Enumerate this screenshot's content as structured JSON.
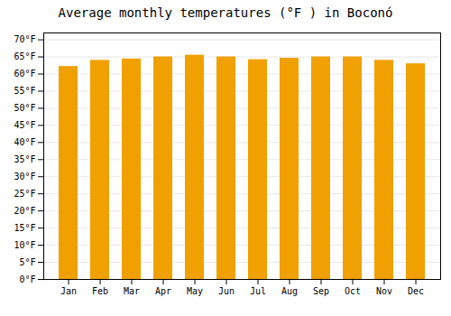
{
  "chart_data": {
    "type": "bar",
    "title": "Average monthly temperatures (°F ) in Boconó",
    "categories": [
      "Jan",
      "Feb",
      "Mar",
      "Apr",
      "May",
      "Jun",
      "Jul",
      "Aug",
      "Sep",
      "Oct",
      "Nov",
      "Dec"
    ],
    "values": [
      62.2,
      64.0,
      64.4,
      65.0,
      65.5,
      65.0,
      64.2,
      64.6,
      65.0,
      65.0,
      64.0,
      63.0
    ],
    "color": "#F0A000",
    "ylim": [
      0,
      72
    ],
    "yticks": [
      {
        "value": 0,
        "label": "0°F"
      },
      {
        "value": 5,
        "label": "5°F"
      },
      {
        "value": 10,
        "label": "10°F"
      },
      {
        "value": 15,
        "label": "15°F"
      },
      {
        "value": 20,
        "label": "20°F"
      },
      {
        "value": 25,
        "label": "25°F"
      },
      {
        "value": 30,
        "label": "30°F"
      },
      {
        "value": 35,
        "label": "35°F"
      },
      {
        "value": 40,
        "label": "40°F"
      },
      {
        "value": 45,
        "label": "45°F"
      },
      {
        "value": 50,
        "label": "50°F"
      },
      {
        "value": 55,
        "label": "55°F"
      },
      {
        "value": 60,
        "label": "60°F"
      },
      {
        "value": 65,
        "label": "65°F"
      },
      {
        "value": 70,
        "label": "70°F"
      }
    ],
    "grid": true
  }
}
